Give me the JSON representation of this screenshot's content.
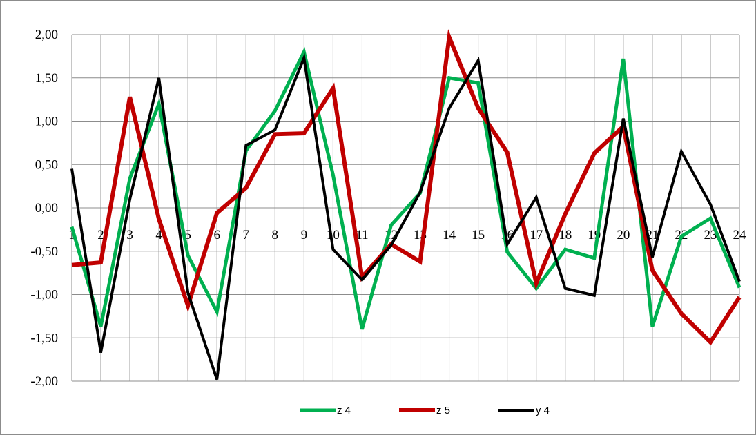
{
  "chart_data": {
    "type": "line",
    "categories": [
      "1",
      "2",
      "3",
      "4",
      "5",
      "6",
      "7",
      "8",
      "9",
      "10",
      "11",
      "12",
      "13",
      "14",
      "15",
      "16",
      "17",
      "18",
      "19",
      "20",
      "21",
      "22",
      "23",
      "24"
    ],
    "ylim": [
      -2.0,
      2.0
    ],
    "y_ticks": [
      "-2,00",
      "-1,50",
      "-1,00",
      "-0,50",
      "0,00",
      "0,50",
      "1,00",
      "1,50",
      "2,00"
    ],
    "grid": true,
    "legend_position": "bottom",
    "series": [
      {
        "name": "z 4",
        "color": "#00b050",
        "values": [
          -0.22,
          -1.37,
          0.34,
          1.2,
          -0.55,
          -1.2,
          0.66,
          1.12,
          1.8,
          0.38,
          -1.4,
          -0.2,
          0.17,
          1.5,
          1.44,
          -0.51,
          -0.93,
          -0.48,
          -0.58,
          1.72,
          -1.37,
          -0.33,
          -0.12,
          -0.92
        ]
      },
      {
        "name": "z 5",
        "color": "#c00000",
        "values": [
          -0.66,
          -0.63,
          1.28,
          -0.13,
          -1.13,
          -0.06,
          0.23,
          0.85,
          0.86,
          1.38,
          -0.8,
          -0.42,
          -0.62,
          1.97,
          1.15,
          0.64,
          -0.87,
          -0.07,
          0.63,
          0.94,
          -0.72,
          -1.22,
          -1.55,
          -1.03
        ]
      },
      {
        "name": "y 4",
        "color": "#000000",
        "values": [
          0.45,
          -1.67,
          0.1,
          1.5,
          -0.98,
          -1.98,
          0.72,
          0.9,
          1.73,
          -0.48,
          -0.83,
          -0.43,
          0.18,
          1.15,
          1.7,
          -0.42,
          0.12,
          -0.93,
          -1.01,
          1.03,
          -0.57,
          0.65,
          0.04,
          -0.85
        ]
      }
    ]
  }
}
